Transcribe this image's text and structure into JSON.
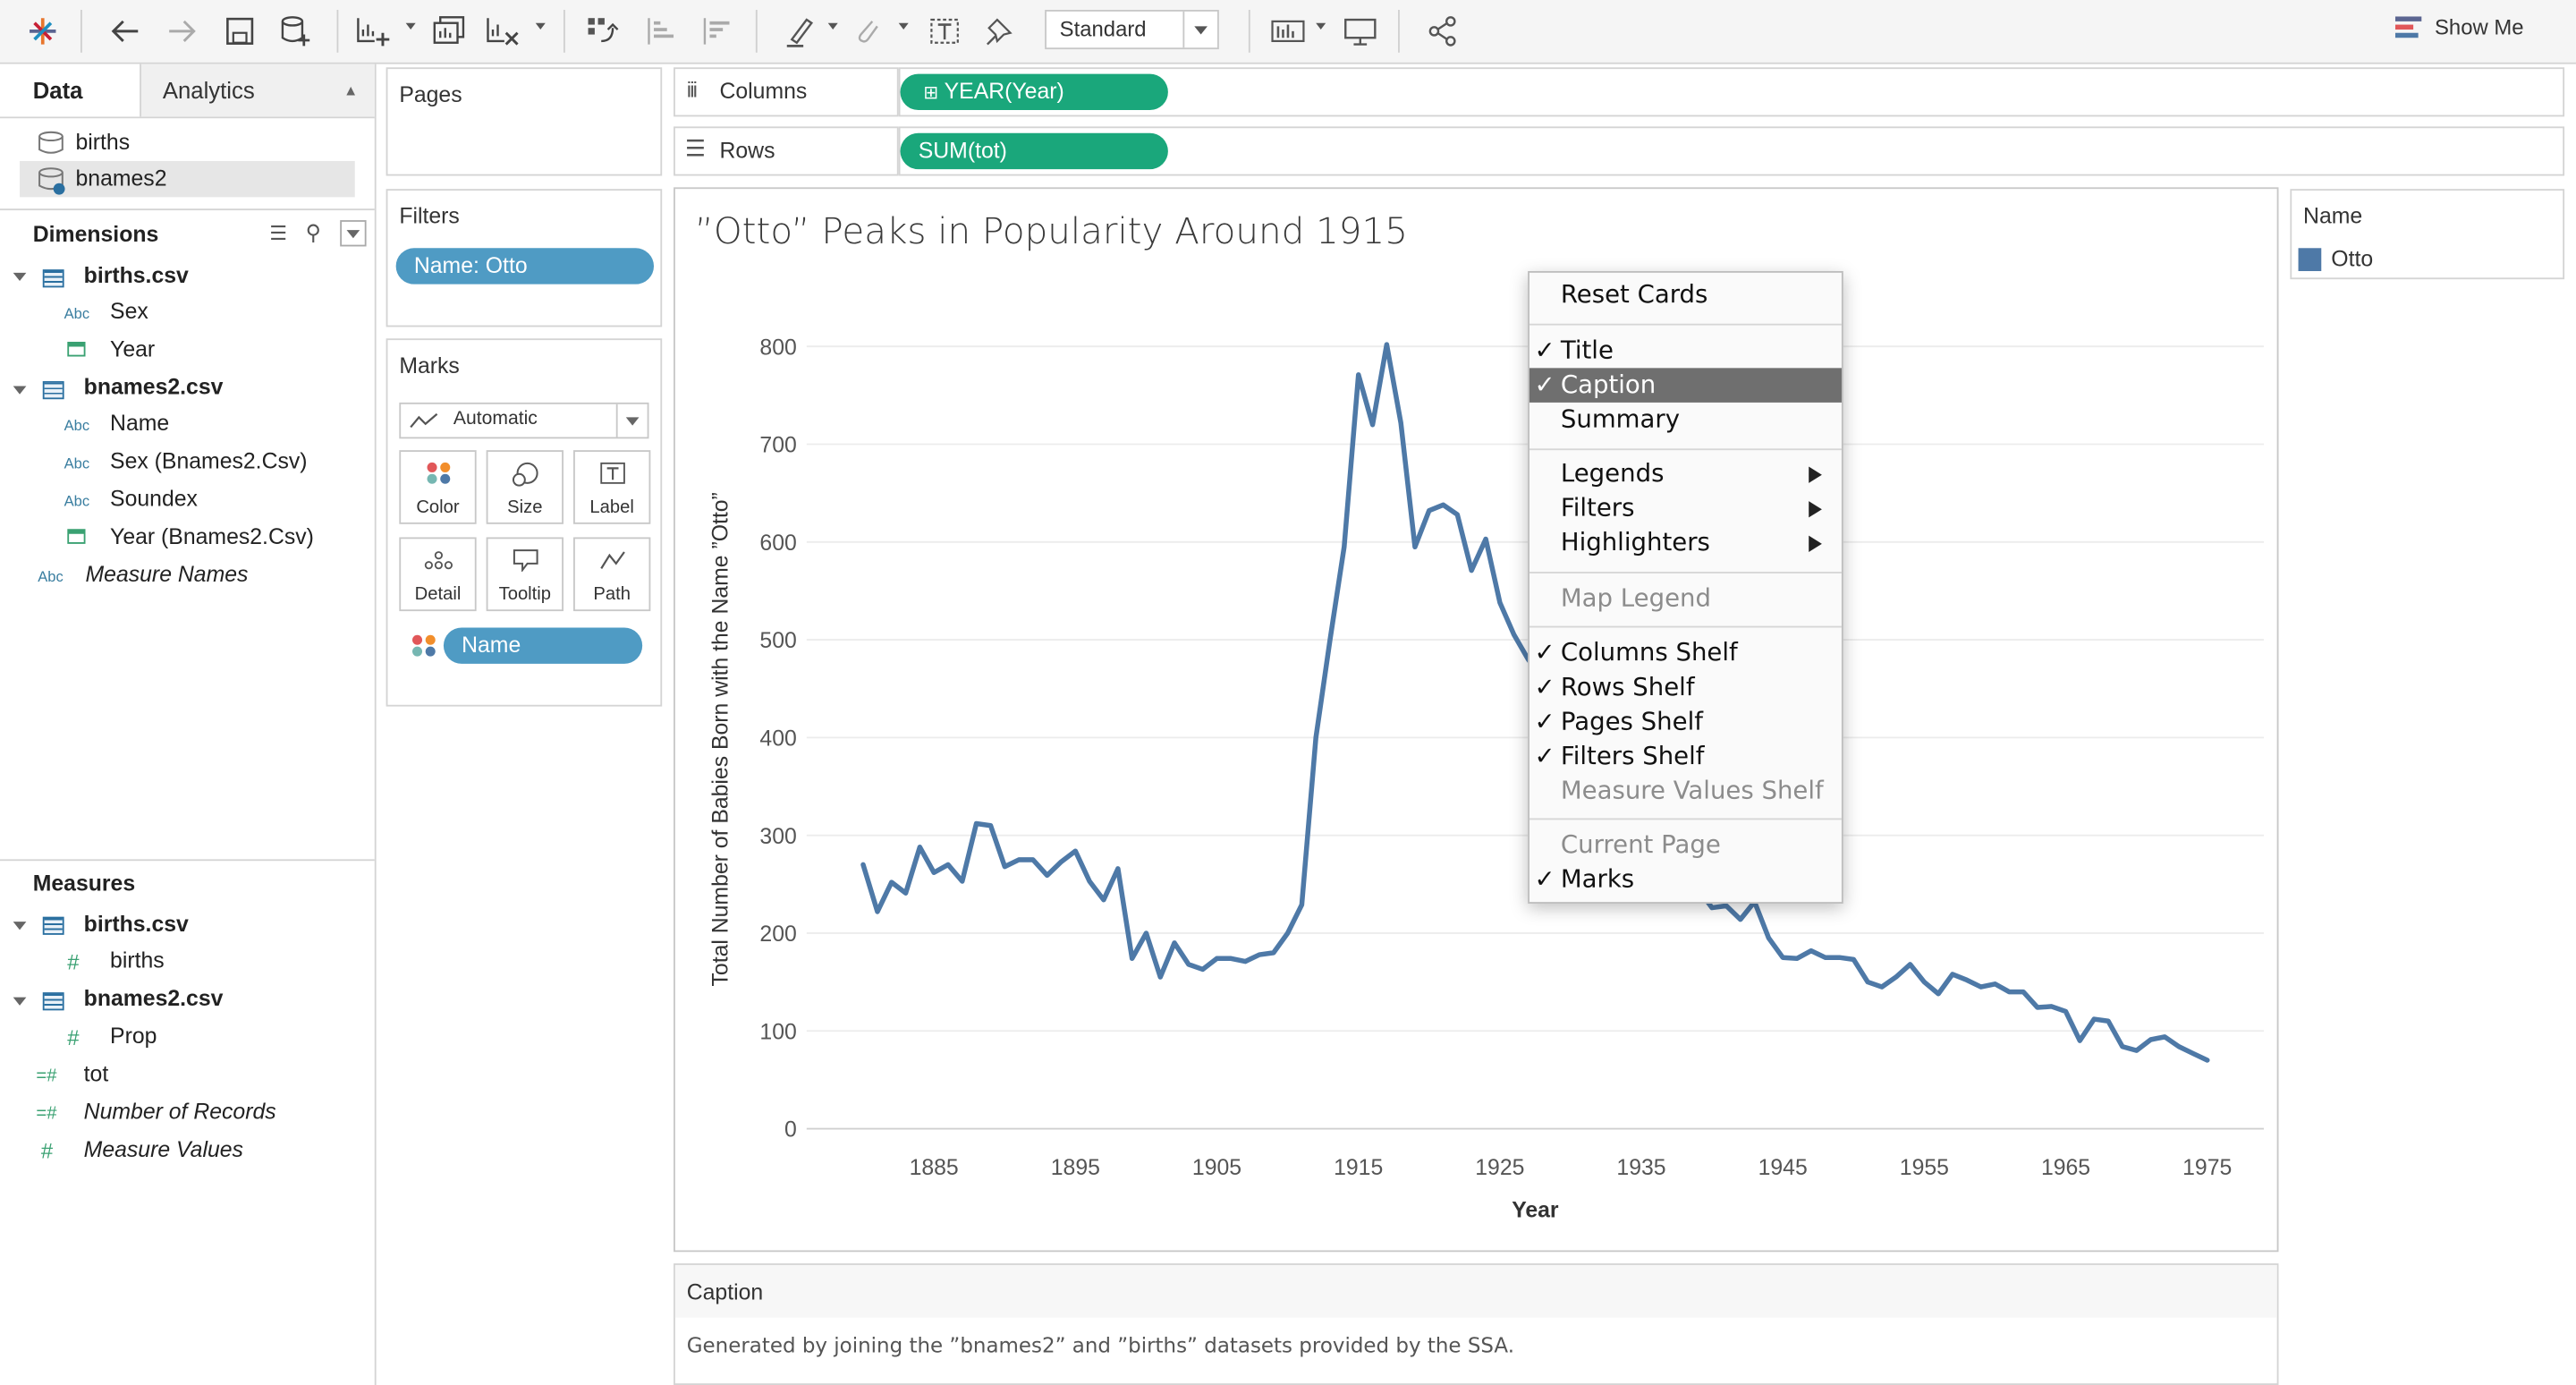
{
  "toolbar": {
    "view_mode": "Standard",
    "show_me": "Show Me",
    "icons": [
      "tableau-logo-icon",
      "back-icon",
      "forward-icon",
      "save-icon",
      "new-datasource-icon",
      "new-worksheet-icon",
      "duplicate-sheet-icon",
      "clear-sheet-icon",
      "swap-icon",
      "sort-ascending-icon",
      "sort-descending-icon",
      "highlight-icon",
      "group-icon",
      "label-icon",
      "pin-icon",
      "cards-icon",
      "presentation-icon",
      "share-icon"
    ]
  },
  "data_pane": {
    "tab_data": "Data",
    "tab_analytics": "Analytics",
    "datasources": [
      "births",
      "bnames2"
    ],
    "dimensions_header": "Dimensions",
    "dimensions": {
      "tables": [
        {
          "name": "births.csv",
          "fields": [
            "Sex",
            "Year"
          ]
        },
        {
          "name": "bnames2.csv",
          "fields": [
            "Name",
            "Sex (Bnames2.Csv)",
            "Soundex",
            "Year (Bnames2.Csv)"
          ]
        }
      ],
      "extra": "Measure Names"
    },
    "measures_header": "Measures",
    "measures": {
      "tables": [
        {
          "name": "births.csv",
          "fields": [
            "births"
          ]
        },
        {
          "name": "bnames2.csv",
          "fields": [
            "Prop"
          ]
        }
      ],
      "extra": [
        "tot",
        "Number of Records",
        "Measure Values"
      ]
    }
  },
  "pages_card": {
    "title": "Pages"
  },
  "filters_card": {
    "title": "Filters",
    "pill": "Name: Otto"
  },
  "marks_card": {
    "title": "Marks",
    "mark_type": "Automatic",
    "buttons": [
      "Color",
      "Size",
      "Label",
      "Detail",
      "Tooltip",
      "Path"
    ],
    "pill": "Name"
  },
  "shelves": {
    "columns_label": "Columns",
    "columns_pill": "YEAR(Year)",
    "rows_label": "Rows",
    "rows_pill": "SUM(tot)"
  },
  "viz": {
    "title": "”Otto” Peaks in Popularity Around 1915"
  },
  "legend": {
    "title": "Name",
    "items": [
      {
        "label": "Otto",
        "color": "#4e79a7"
      }
    ]
  },
  "caption": {
    "title": "Caption",
    "text": "Generated by joining the ”bnames2” and ”births” datasets provided by the SSA."
  },
  "context_menu": {
    "items": [
      {
        "label": "Reset Cards",
        "checked": false,
        "disabled": false,
        "submenu": false,
        "selected": false
      },
      {
        "label": "Title",
        "checked": true,
        "disabled": false,
        "submenu": false,
        "selected": false
      },
      {
        "label": "Caption",
        "checked": true,
        "disabled": false,
        "submenu": false,
        "selected": true
      },
      {
        "label": "Summary",
        "checked": false,
        "disabled": false,
        "submenu": false,
        "selected": false
      },
      {
        "label": "Legends",
        "checked": false,
        "disabled": false,
        "submenu": true,
        "selected": false
      },
      {
        "label": "Filters",
        "checked": false,
        "disabled": false,
        "submenu": true,
        "selected": false
      },
      {
        "label": "Highlighters",
        "checked": false,
        "disabled": false,
        "submenu": true,
        "selected": false
      },
      {
        "label": "Map Legend",
        "checked": false,
        "disabled": true,
        "submenu": false,
        "selected": false
      },
      {
        "label": "Columns Shelf",
        "checked": true,
        "disabled": false,
        "submenu": false,
        "selected": false
      },
      {
        "label": "Rows Shelf",
        "checked": true,
        "disabled": false,
        "submenu": false,
        "selected": false
      },
      {
        "label": "Pages Shelf",
        "checked": true,
        "disabled": false,
        "submenu": false,
        "selected": false
      },
      {
        "label": "Filters Shelf",
        "checked": true,
        "disabled": false,
        "submenu": false,
        "selected": false
      },
      {
        "label": "Measure Values Shelf",
        "checked": false,
        "disabled": true,
        "submenu": false,
        "selected": false
      },
      {
        "label": "Current Page",
        "checked": false,
        "disabled": true,
        "submenu": false,
        "selected": false
      },
      {
        "label": "Marks",
        "checked": true,
        "disabled": false,
        "submenu": false,
        "selected": false
      }
    ]
  },
  "chart_data": {
    "type": "line",
    "title": "”Otto” Peaks in Popularity Around 1915",
    "xlabel": "Year",
    "ylabel": "Total Number of Babies Born with the Name ”Otto”",
    "xlim": [
      1876,
      1979
    ],
    "ylim": [
      0,
      830
    ],
    "xticks": [
      1885,
      1895,
      1905,
      1915,
      1925,
      1935,
      1945,
      1955,
      1965,
      1975
    ],
    "yticks": [
      0,
      100,
      200,
      300,
      400,
      500,
      600,
      700,
      800
    ],
    "grid": true,
    "series": [
      {
        "name": "Otto",
        "color": "#4e79a7",
        "x": [
          1880,
          1881,
          1882,
          1883,
          1884,
          1885,
          1886,
          1887,
          1888,
          1889,
          1890,
          1891,
          1892,
          1893,
          1894,
          1895,
          1896,
          1897,
          1898,
          1899,
          1900,
          1901,
          1902,
          1903,
          1904,
          1905,
          1906,
          1907,
          1908,
          1909,
          1910,
          1911,
          1912,
          1913,
          1914,
          1915,
          1916,
          1917,
          1918,
          1919,
          1920,
          1921,
          1922,
          1923,
          1924,
          1925,
          1926,
          1927,
          1940,
          1941,
          1942,
          1943,
          1944,
          1945,
          1946,
          1947,
          1948,
          1949,
          1950,
          1951,
          1952,
          1953,
          1954,
          1955,
          1956,
          1957,
          1958,
          1959,
          1960,
          1961,
          1962,
          1963,
          1964,
          1965,
          1966,
          1967,
          1968,
          1969,
          1970,
          1971,
          1972,
          1973,
          1974,
          1975
        ],
        "y": [
          270,
          222,
          252,
          241,
          288,
          262,
          270,
          253,
          312,
          310,
          268,
          275,
          275,
          259,
          273,
          284,
          253,
          234,
          266,
          174,
          200,
          155,
          190,
          168,
          163,
          174,
          174,
          171,
          178,
          180,
          200,
          229,
          400,
          500,
          595,
          771,
          720,
          802,
          722,
          595,
          632,
          638,
          628,
          571,
          603,
          538,
          505,
          480,
          226,
          228,
          214,
          232,
          195,
          175,
          174,
          182,
          175,
          175,
          173,
          150,
          145,
          155,
          168,
          150,
          138,
          158,
          152,
          145,
          148,
          140,
          140,
          124,
          125,
          120,
          90,
          112,
          110,
          84,
          80,
          91,
          94,
          84,
          77,
          70
        ]
      }
    ]
  }
}
